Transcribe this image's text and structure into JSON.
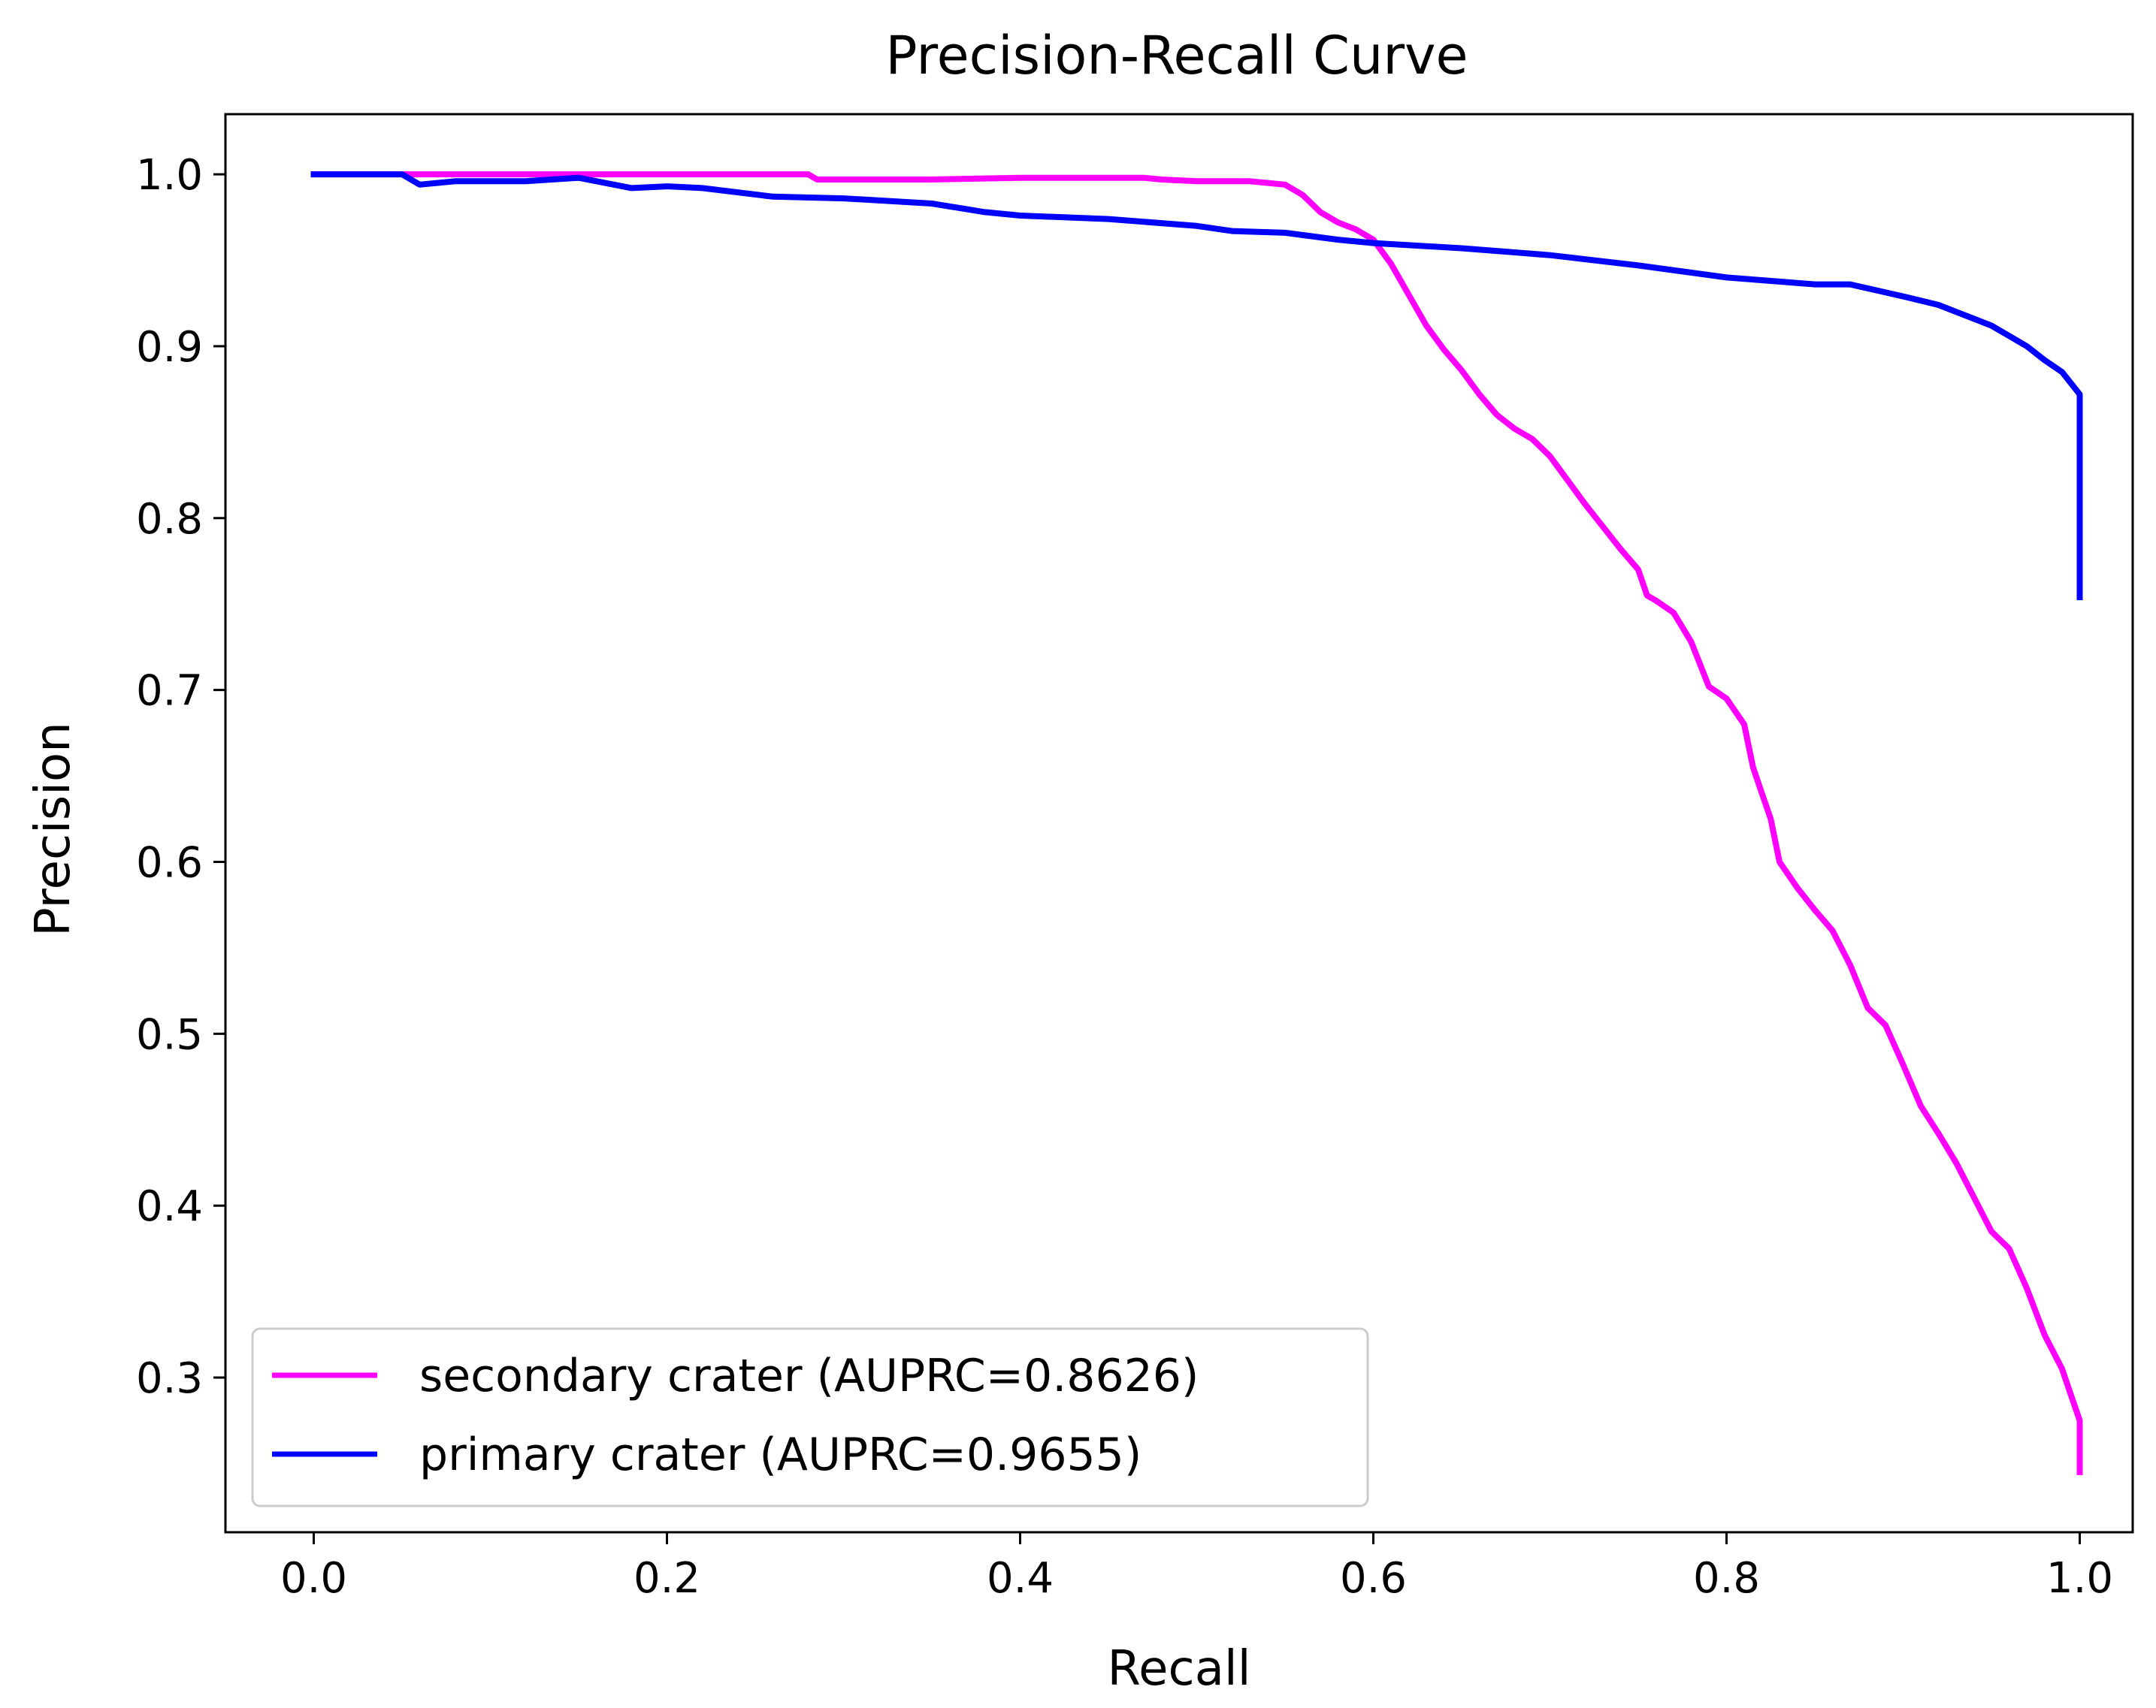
{
  "chart_data": {
    "type": "line",
    "title": "Precision-Recall Curve",
    "xlabel": "Recall",
    "ylabel": "Precision",
    "xlim": [
      -0.05,
      1.03
    ],
    "ylim": [
      0.21,
      1.035
    ],
    "xticks": [
      0.0,
      0.2,
      0.4,
      0.6,
      0.8,
      1.0
    ],
    "xtick_labels": [
      "0.0",
      "0.2",
      "0.4",
      "0.6",
      "0.8",
      "1.0"
    ],
    "yticks": [
      0.3,
      0.4,
      0.5,
      0.6,
      0.7,
      0.8,
      0.9,
      1.0
    ],
    "ytick_labels": [
      "0.3",
      "0.4",
      "0.5",
      "0.6",
      "0.7",
      "0.8",
      "0.9",
      "1.0"
    ],
    "grid": false,
    "legend_position": "lower-left",
    "series": [
      {
        "name": "secondary crater (AUPRC=0.8626)",
        "color": "#ff00ff",
        "x": [
          0.0,
          0.06,
          0.1,
          0.2,
          0.28,
          0.285,
          0.35,
          0.4,
          0.45,
          0.47,
          0.48,
          0.5,
          0.53,
          0.55,
          0.56,
          0.57,
          0.58,
          0.59,
          0.6,
          0.61,
          0.62,
          0.63,
          0.64,
          0.65,
          0.66,
          0.67,
          0.68,
          0.69,
          0.7,
          0.71,
          0.72,
          0.73,
          0.74,
          0.75,
          0.755,
          0.76,
          0.77,
          0.78,
          0.79,
          0.8,
          0.81,
          0.815,
          0.82,
          0.825,
          0.83,
          0.84,
          0.85,
          0.86,
          0.87,
          0.88,
          0.89,
          0.9,
          0.91,
          0.92,
          0.93,
          0.94,
          0.95,
          0.96,
          0.97,
          0.98,
          0.99,
          0.995,
          1.0,
          1.0
        ],
        "y": [
          1.0,
          1.0,
          1.0,
          1.0,
          1.0,
          0.997,
          0.997,
          0.998,
          0.998,
          0.998,
          0.997,
          0.996,
          0.996,
          0.994,
          0.988,
          0.978,
          0.972,
          0.968,
          0.962,
          0.948,
          0.93,
          0.912,
          0.898,
          0.886,
          0.872,
          0.86,
          0.852,
          0.846,
          0.836,
          0.822,
          0.808,
          0.795,
          0.782,
          0.77,
          0.755,
          0.752,
          0.745,
          0.728,
          0.702,
          0.695,
          0.68,
          0.655,
          0.64,
          0.625,
          0.6,
          0.585,
          0.572,
          0.56,
          0.54,
          0.515,
          0.505,
          0.482,
          0.458,
          0.442,
          0.425,
          0.405,
          0.385,
          0.375,
          0.352,
          0.325,
          0.305,
          0.29,
          0.275,
          0.245
        ]
      },
      {
        "name": "primary crater (AUPRC=0.9655)",
        "color": "#0000ff",
        "x": [
          0.0,
          0.05,
          0.06,
          0.08,
          0.12,
          0.15,
          0.18,
          0.2,
          0.22,
          0.26,
          0.3,
          0.35,
          0.38,
          0.4,
          0.45,
          0.5,
          0.52,
          0.55,
          0.58,
          0.6,
          0.65,
          0.7,
          0.75,
          0.8,
          0.85,
          0.87,
          0.9,
          0.92,
          0.95,
          0.97,
          0.98,
          0.99,
          1.0,
          1.0
        ],
        "y": [
          1.0,
          1.0,
          0.994,
          0.996,
          0.996,
          0.998,
          0.992,
          0.993,
          0.992,
          0.987,
          0.986,
          0.983,
          0.978,
          0.976,
          0.974,
          0.97,
          0.967,
          0.966,
          0.962,
          0.96,
          0.957,
          0.953,
          0.947,
          0.94,
          0.936,
          0.936,
          0.929,
          0.924,
          0.912,
          0.9,
          0.892,
          0.885,
          0.872,
          0.754
        ]
      }
    ]
  }
}
